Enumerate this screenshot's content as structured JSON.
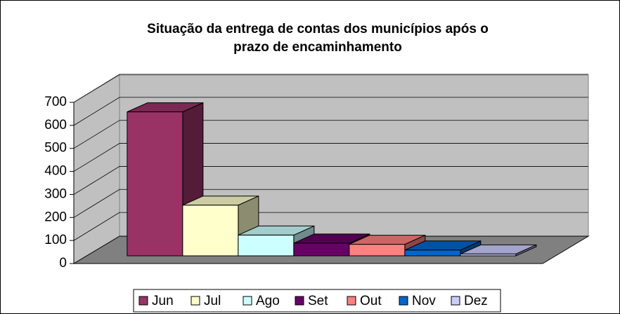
{
  "chart_data": {
    "type": "bar",
    "title": [
      "Situação da entrega de contas dos municípios após o",
      "prazo de encaminhamento"
    ],
    "series": [
      {
        "name": "Jun",
        "color": "#993366",
        "values": [
          625
        ]
      },
      {
        "name": "Jul",
        "color": "#ffffcc",
        "values": [
          220
        ]
      },
      {
        "name": "Ago",
        "color": "#ccffff",
        "values": [
          90
        ]
      },
      {
        "name": "Set",
        "color": "#660066",
        "values": [
          55
        ]
      },
      {
        "name": "Out",
        "color": "#ff8080",
        "values": [
          50
        ]
      },
      {
        "name": "Nov",
        "color": "#0066cc",
        "values": [
          25
        ]
      },
      {
        "name": "Dez",
        "color": "#ccccff",
        "values": [
          8
        ]
      }
    ],
    "ylim": [
      0,
      700
    ],
    "yticks": [
      0,
      100,
      200,
      300,
      400,
      500,
      600,
      700
    ],
    "grid": true
  }
}
